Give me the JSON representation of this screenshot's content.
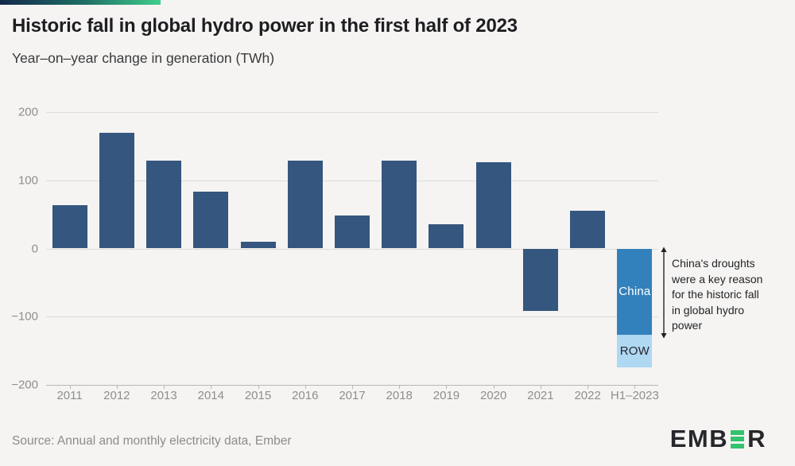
{
  "header": {
    "title": "Historic fall in global hydro power in the first half of 2023",
    "subtitle": "Year–on–year change in generation (TWh)"
  },
  "annotation": {
    "text": "China's droughts\nwere a key reason\nfor the historic fall\nin global hydro\npower"
  },
  "footer": {
    "source": "Source: Annual and monthly electricity data, Ember",
    "logo_left": "EMB",
    "logo_right": "R"
  },
  "colors": {
    "bar_navy": "#35567E",
    "bar_china": "#3381BC",
    "bar_row": "#AFD8F3",
    "background": "#F5F4F2",
    "gridline": "#DCDCDA",
    "axis_line": "#B7B7B5",
    "tick_label": "#8E8E8C",
    "annotation_text": "#222428",
    "logo_dark": "#26262B",
    "logo_green": "#33C26E",
    "gradient_start": "#14294B",
    "gradient_mid": "#1E6E66",
    "gradient_end": "#3FCE8C"
  },
  "chart_data": {
    "type": "bar",
    "title": "Historic fall in global hydro power in the first half of 2023",
    "subtitle": "Year–on–year change in generation (TWh)",
    "unit": "TWh",
    "xlabel": "",
    "ylabel": "Year-on-year change in generation (TWh)",
    "ylim": [
      -200,
      200
    ],
    "yticks": [
      200,
      100,
      0,
      -100,
      -200
    ],
    "ytick_labels": [
      "200",
      "100",
      "0",
      "−100",
      "−200"
    ],
    "grid": true,
    "legend_position": "none",
    "categories": [
      "2011",
      "2012",
      "2013",
      "2014",
      "2015",
      "2016",
      "2017",
      "2018",
      "2019",
      "2020",
      "2021",
      "2022",
      "H1–2023"
    ],
    "bars": [
      {
        "category": "2011",
        "segments": [
          {
            "value": 63,
            "color_key": "bar_navy"
          }
        ]
      },
      {
        "category": "2012",
        "segments": [
          {
            "value": 170,
            "color_key": "bar_navy"
          }
        ]
      },
      {
        "category": "2013",
        "segments": [
          {
            "value": 129,
            "color_key": "bar_navy"
          }
        ]
      },
      {
        "category": "2014",
        "segments": [
          {
            "value": 83,
            "color_key": "bar_navy"
          }
        ]
      },
      {
        "category": "2015",
        "segments": [
          {
            "value": 10,
            "color_key": "bar_navy"
          }
        ]
      },
      {
        "category": "2016",
        "segments": [
          {
            "value": 129,
            "color_key": "bar_navy"
          }
        ]
      },
      {
        "category": "2017",
        "segments": [
          {
            "value": 48,
            "color_key": "bar_navy"
          }
        ]
      },
      {
        "category": "2018",
        "segments": [
          {
            "value": 129,
            "color_key": "bar_navy"
          }
        ]
      },
      {
        "category": "2019",
        "segments": [
          {
            "value": 36,
            "color_key": "bar_navy"
          }
        ]
      },
      {
        "category": "2020",
        "segments": [
          {
            "value": 127,
            "color_key": "bar_navy"
          }
        ]
      },
      {
        "category": "2021",
        "segments": [
          {
            "value": -92,
            "color_key": "bar_navy"
          }
        ]
      },
      {
        "category": "2022",
        "segments": [
          {
            "value": 55,
            "color_key": "bar_navy"
          }
        ]
      },
      {
        "category": "H1–2023",
        "segments": [
          {
            "label": "China",
            "value": -126,
            "color_key": "bar_china",
            "label_color": "#FFFFFF"
          },
          {
            "label": "ROW",
            "value": -48,
            "color_key": "bar_row",
            "label_color": "#26262B"
          }
        ]
      }
    ]
  }
}
